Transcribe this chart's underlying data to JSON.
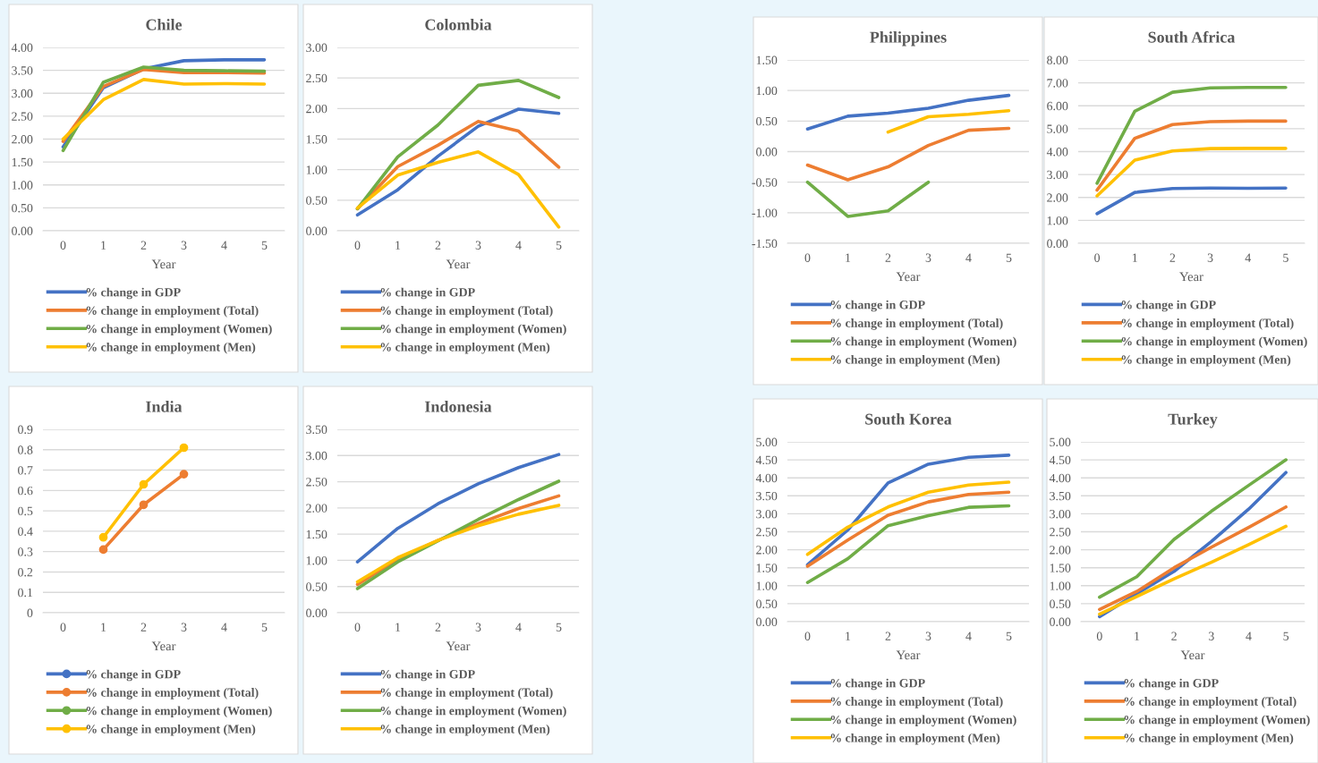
{
  "chart_data": [
    {
      "type": "line",
      "title": "Chile",
      "xlabel": "Year",
      "categories": [
        "0",
        "1",
        "2",
        "3",
        "4",
        "5"
      ],
      "ylim": [
        0,
        4
      ],
      "yticks": [
        {
          "value": 0,
          "label": "0.00"
        },
        {
          "value": 0.5,
          "label": "0.50"
        },
        {
          "value": 1,
          "label": "1.00"
        },
        {
          "value": 1.5,
          "label": "1.50"
        },
        {
          "value": 2,
          "label": "2.00"
        },
        {
          "value": 2.5,
          "label": "2.50"
        },
        {
          "value": 3,
          "label": "3.00"
        },
        {
          "value": 3.5,
          "label": "3.50"
        },
        {
          "value": 4,
          "label": "4.00"
        }
      ],
      "grid": "y",
      "legend": "bottom",
      "marker": "none",
      "series": [
        {
          "name": "% change in GDP",
          "color": "#4472c4",
          "values": [
            1.83,
            3.12,
            3.53,
            3.71,
            3.73,
            3.73
          ]
        },
        {
          "name": "% change in employment (Total)",
          "color": "#ed7d31",
          "values": [
            1.95,
            3.15,
            3.52,
            3.45,
            3.45,
            3.44
          ]
        },
        {
          "name": "% change in employment (Women)",
          "color": "#70ad47",
          "values": [
            1.75,
            3.24,
            3.57,
            3.5,
            3.49,
            3.48
          ]
        },
        {
          "name": "% change in employment (Men)",
          "color": "#ffc000",
          "values": [
            2.0,
            2.86,
            3.3,
            3.2,
            3.21,
            3.2
          ]
        }
      ]
    },
    {
      "type": "line",
      "title": "Colombia",
      "xlabel": "Year",
      "categories": [
        "0",
        "1",
        "2",
        "3",
        "4",
        "5"
      ],
      "ylim": [
        0,
        3
      ],
      "yticks": [
        {
          "value": 0,
          "label": "0.00"
        },
        {
          "value": 0.5,
          "label": "0.50"
        },
        {
          "value": 1,
          "label": "1.00"
        },
        {
          "value": 1.5,
          "label": "1.50"
        },
        {
          "value": 2,
          "label": "2.00"
        },
        {
          "value": 2.5,
          "label": "2.50"
        },
        {
          "value": 3,
          "label": "3.00"
        }
      ],
      "grid": "y",
      "legend": "bottom",
      "marker": "none",
      "series": [
        {
          "name": "% change in GDP",
          "color": "#4472c4",
          "values": [
            0.26,
            0.67,
            1.22,
            1.71,
            1.99,
            1.92
          ]
        },
        {
          "name": "% change in employment (Total)",
          "color": "#ed7d31",
          "values": [
            0.36,
            1.05,
            1.4,
            1.79,
            1.63,
            1.04
          ]
        },
        {
          "name": "% change in employment (Women)",
          "color": "#70ad47",
          "values": [
            0.36,
            1.21,
            1.73,
            2.38,
            2.46,
            2.18
          ]
        },
        {
          "name": "% change in employment (Men)",
          "color": "#ffc000",
          "values": [
            0.37,
            0.91,
            1.12,
            1.29,
            0.92,
            0.06
          ]
        }
      ]
    },
    {
      "type": "line",
      "title": "India",
      "xlabel": "Year",
      "categories": [
        "0",
        "1",
        "2",
        "3",
        "4",
        "5"
      ],
      "ylim": [
        0,
        0.9
      ],
      "yticks": [
        0,
        0.1,
        0.2,
        0.3,
        0.4,
        0.5,
        0.6,
        0.7,
        0.8,
        0.9
      ],
      "grid": "y",
      "legend": "bottom",
      "marker": "circle",
      "series": [
        {
          "name": "% change in GDP",
          "color": "#4472c4",
          "values": [
            null,
            null,
            null,
            null,
            null,
            null
          ]
        },
        {
          "name": "% change in employment (Total)",
          "color": "#ed7d31",
          "values": [
            null,
            0.31,
            0.53,
            0.68,
            null,
            null
          ]
        },
        {
          "name": "% change in employment (Women)",
          "color": "#70ad47",
          "values": [
            null,
            null,
            null,
            null,
            null,
            null
          ]
        },
        {
          "name": "% change in employment (Men)",
          "color": "#ffc000",
          "values": [
            null,
            0.37,
            0.63,
            0.81,
            null,
            null
          ]
        }
      ]
    },
    {
      "type": "line",
      "title": "Indonesia",
      "xlabel": "Year",
      "categories": [
        "0",
        "1",
        "2",
        "3",
        "4",
        "5"
      ],
      "ylim": [
        0,
        3.5
      ],
      "yticks": [
        {
          "value": 0,
          "label": "0.00"
        },
        {
          "value": 0.5,
          "label": "0.50"
        },
        {
          "value": 1,
          "label": "1.00"
        },
        {
          "value": 1.5,
          "label": "1.50"
        },
        {
          "value": 2,
          "label": "2.00"
        },
        {
          "value": 2.5,
          "label": "2.50"
        },
        {
          "value": 3,
          "label": "3.00"
        },
        {
          "value": 3.5,
          "label": "3.50"
        }
      ],
      "grid": "y",
      "legend": "bottom",
      "marker": "none",
      "series": [
        {
          "name": "% change in GDP",
          "color": "#4472c4",
          "values": [
            0.97,
            1.61,
            2.08,
            2.46,
            2.77,
            3.02
          ]
        },
        {
          "name": "% change in employment (Total)",
          "color": "#ed7d31",
          "values": [
            0.54,
            1.02,
            1.38,
            1.7,
            1.99,
            2.23
          ]
        },
        {
          "name": "% change in employment (Women)",
          "color": "#70ad47",
          "values": [
            0.46,
            0.97,
            1.37,
            1.78,
            2.16,
            2.51
          ]
        },
        {
          "name": "% change in employment (Men)",
          "color": "#ffc000",
          "values": [
            0.59,
            1.05,
            1.38,
            1.66,
            1.88,
            2.05
          ]
        }
      ]
    },
    {
      "type": "line",
      "title": "Philippines",
      "xlabel": "Year",
      "categories": [
        "0",
        "1",
        "2",
        "3",
        "4",
        "5"
      ],
      "ylim": [
        -1.5,
        1.5
      ],
      "yticks": [
        {
          "value": -1.5,
          "label": "-1.50"
        },
        {
          "value": -1,
          "label": "-1.00"
        },
        {
          "value": -0.5,
          "label": "-0.50"
        },
        {
          "value": 0,
          "label": "0.00"
        },
        {
          "value": 0.5,
          "label": "0.50"
        },
        {
          "value": 1,
          "label": "1.00"
        },
        {
          "value": 1.5,
          "label": "1.50"
        }
      ],
      "grid": "y",
      "legend": "bottom",
      "marker": "none",
      "series": [
        {
          "name": "% change in GDP",
          "color": "#4472c4",
          "values": [
            0.37,
            0.58,
            0.63,
            0.71,
            0.84,
            0.92
          ]
        },
        {
          "name": "% change in employment (Total)",
          "color": "#ed7d31",
          "values": [
            -0.22,
            -0.46,
            -0.25,
            0.1,
            0.35,
            0.38
          ]
        },
        {
          "name": "% change in employment (Women)",
          "color": "#70ad47",
          "values": [
            -0.5,
            -1.06,
            -0.97,
            -0.5,
            null,
            null
          ]
        },
        {
          "name": "% change in employment (Men)",
          "color": "#ffc000",
          "values": [
            null,
            null,
            0.32,
            0.57,
            0.61,
            0.67
          ]
        }
      ]
    },
    {
      "type": "line",
      "title": "South Africa",
      "xlabel": "Year",
      "categories": [
        "0",
        "1",
        "2",
        "3",
        "4",
        "5"
      ],
      "ylim": [
        0,
        8
      ],
      "yticks": [
        {
          "value": 0,
          "label": "0.00"
        },
        {
          "value": 1,
          "label": "1.00"
        },
        {
          "value": 2,
          "label": "2.00"
        },
        {
          "value": 3,
          "label": "3.00"
        },
        {
          "value": 4,
          "label": "4.00"
        },
        {
          "value": 5,
          "label": "5.00"
        },
        {
          "value": 6,
          "label": "6.00"
        },
        {
          "value": 7,
          "label": "7.00"
        },
        {
          "value": 8,
          "label": "8.00"
        }
      ],
      "grid": "y",
      "legend": "bottom",
      "marker": "none",
      "series": [
        {
          "name": "% change in GDP",
          "color": "#4472c4",
          "values": [
            1.29,
            2.22,
            2.39,
            2.41,
            2.4,
            2.41
          ]
        },
        {
          "name": "% change in employment (Total)",
          "color": "#ed7d31",
          "values": [
            2.32,
            4.58,
            5.18,
            5.31,
            5.33,
            5.33
          ]
        },
        {
          "name": "% change in employment (Women)",
          "color": "#70ad47",
          "values": [
            2.62,
            5.76,
            6.59,
            6.78,
            6.8,
            6.8
          ]
        },
        {
          "name": "% change in employment (Men)",
          "color": "#ffc000",
          "values": [
            2.07,
            3.63,
            4.03,
            4.13,
            4.14,
            4.14
          ]
        }
      ]
    },
    {
      "type": "line",
      "title": "South Korea",
      "xlabel": "Year",
      "categories": [
        "0",
        "1",
        "2",
        "3",
        "4",
        "5"
      ],
      "ylim": [
        0,
        5
      ],
      "yticks": [
        {
          "value": 0,
          "label": "0.00"
        },
        {
          "value": 0.5,
          "label": "0.50"
        },
        {
          "value": 1,
          "label": "1.00"
        },
        {
          "value": 1.5,
          "label": "1.50"
        },
        {
          "value": 2,
          "label": "2.00"
        },
        {
          "value": 2.5,
          "label": "2.50"
        },
        {
          "value": 3,
          "label": "3.00"
        },
        {
          "value": 3.5,
          "label": "3.50"
        },
        {
          "value": 4,
          "label": "4.00"
        },
        {
          "value": 4.5,
          "label": "4.50"
        },
        {
          "value": 5,
          "label": "5.00"
        }
      ],
      "grid": "y",
      "legend": "bottom",
      "marker": "none",
      "series": [
        {
          "name": "% change in GDP",
          "color": "#4472c4",
          "values": [
            1.58,
            2.55,
            3.86,
            4.38,
            4.57,
            4.63
          ]
        },
        {
          "name": "% change in employment (Total)",
          "color": "#ed7d31",
          "values": [
            1.54,
            2.27,
            2.96,
            3.33,
            3.54,
            3.6
          ]
        },
        {
          "name": "% change in employment (Women)",
          "color": "#70ad47",
          "values": [
            1.09,
            1.75,
            2.67,
            2.95,
            3.18,
            3.22
          ]
        },
        {
          "name": "% change in employment (Men)",
          "color": "#ffc000",
          "values": [
            1.87,
            2.63,
            3.19,
            3.6,
            3.8,
            3.88
          ]
        }
      ]
    },
    {
      "type": "line",
      "title": "Turkey",
      "xlabel": "Year",
      "categories": [
        "0",
        "1",
        "2",
        "3",
        "4",
        "5"
      ],
      "ylim": [
        0,
        5
      ],
      "yticks": [
        {
          "value": 0,
          "label": "0.00"
        },
        {
          "value": 0.5,
          "label": "0.50"
        },
        {
          "value": 1,
          "label": "1.00"
        },
        {
          "value": 1.5,
          "label": "1.50"
        },
        {
          "value": 2,
          "label": "2.00"
        },
        {
          "value": 2.5,
          "label": "2.50"
        },
        {
          "value": 3,
          "label": "3.00"
        },
        {
          "value": 3.5,
          "label": "3.50"
        },
        {
          "value": 4,
          "label": "4.00"
        },
        {
          "value": 4.5,
          "label": "4.50"
        },
        {
          "value": 5,
          "label": "5.00"
        }
      ],
      "grid": "y",
      "legend": "bottom",
      "marker": "none",
      "series": [
        {
          "name": "% change in GDP",
          "color": "#4472c4",
          "values": [
            0.14,
            0.78,
            1.4,
            2.23,
            3.13,
            4.15
          ]
        },
        {
          "name": "% change in employment (Total)",
          "color": "#ed7d31",
          "values": [
            0.34,
            0.84,
            1.5,
            2.07,
            2.62,
            3.19
          ]
        },
        {
          "name": "% change in employment (Women)",
          "color": "#70ad47",
          "values": [
            0.68,
            1.25,
            2.29,
            3.07,
            3.79,
            4.5
          ]
        },
        {
          "name": "% change in employment (Men)",
          "color": "#ffc000",
          "values": [
            0.21,
            0.7,
            1.19,
            1.65,
            2.14,
            2.65
          ]
        }
      ]
    }
  ]
}
